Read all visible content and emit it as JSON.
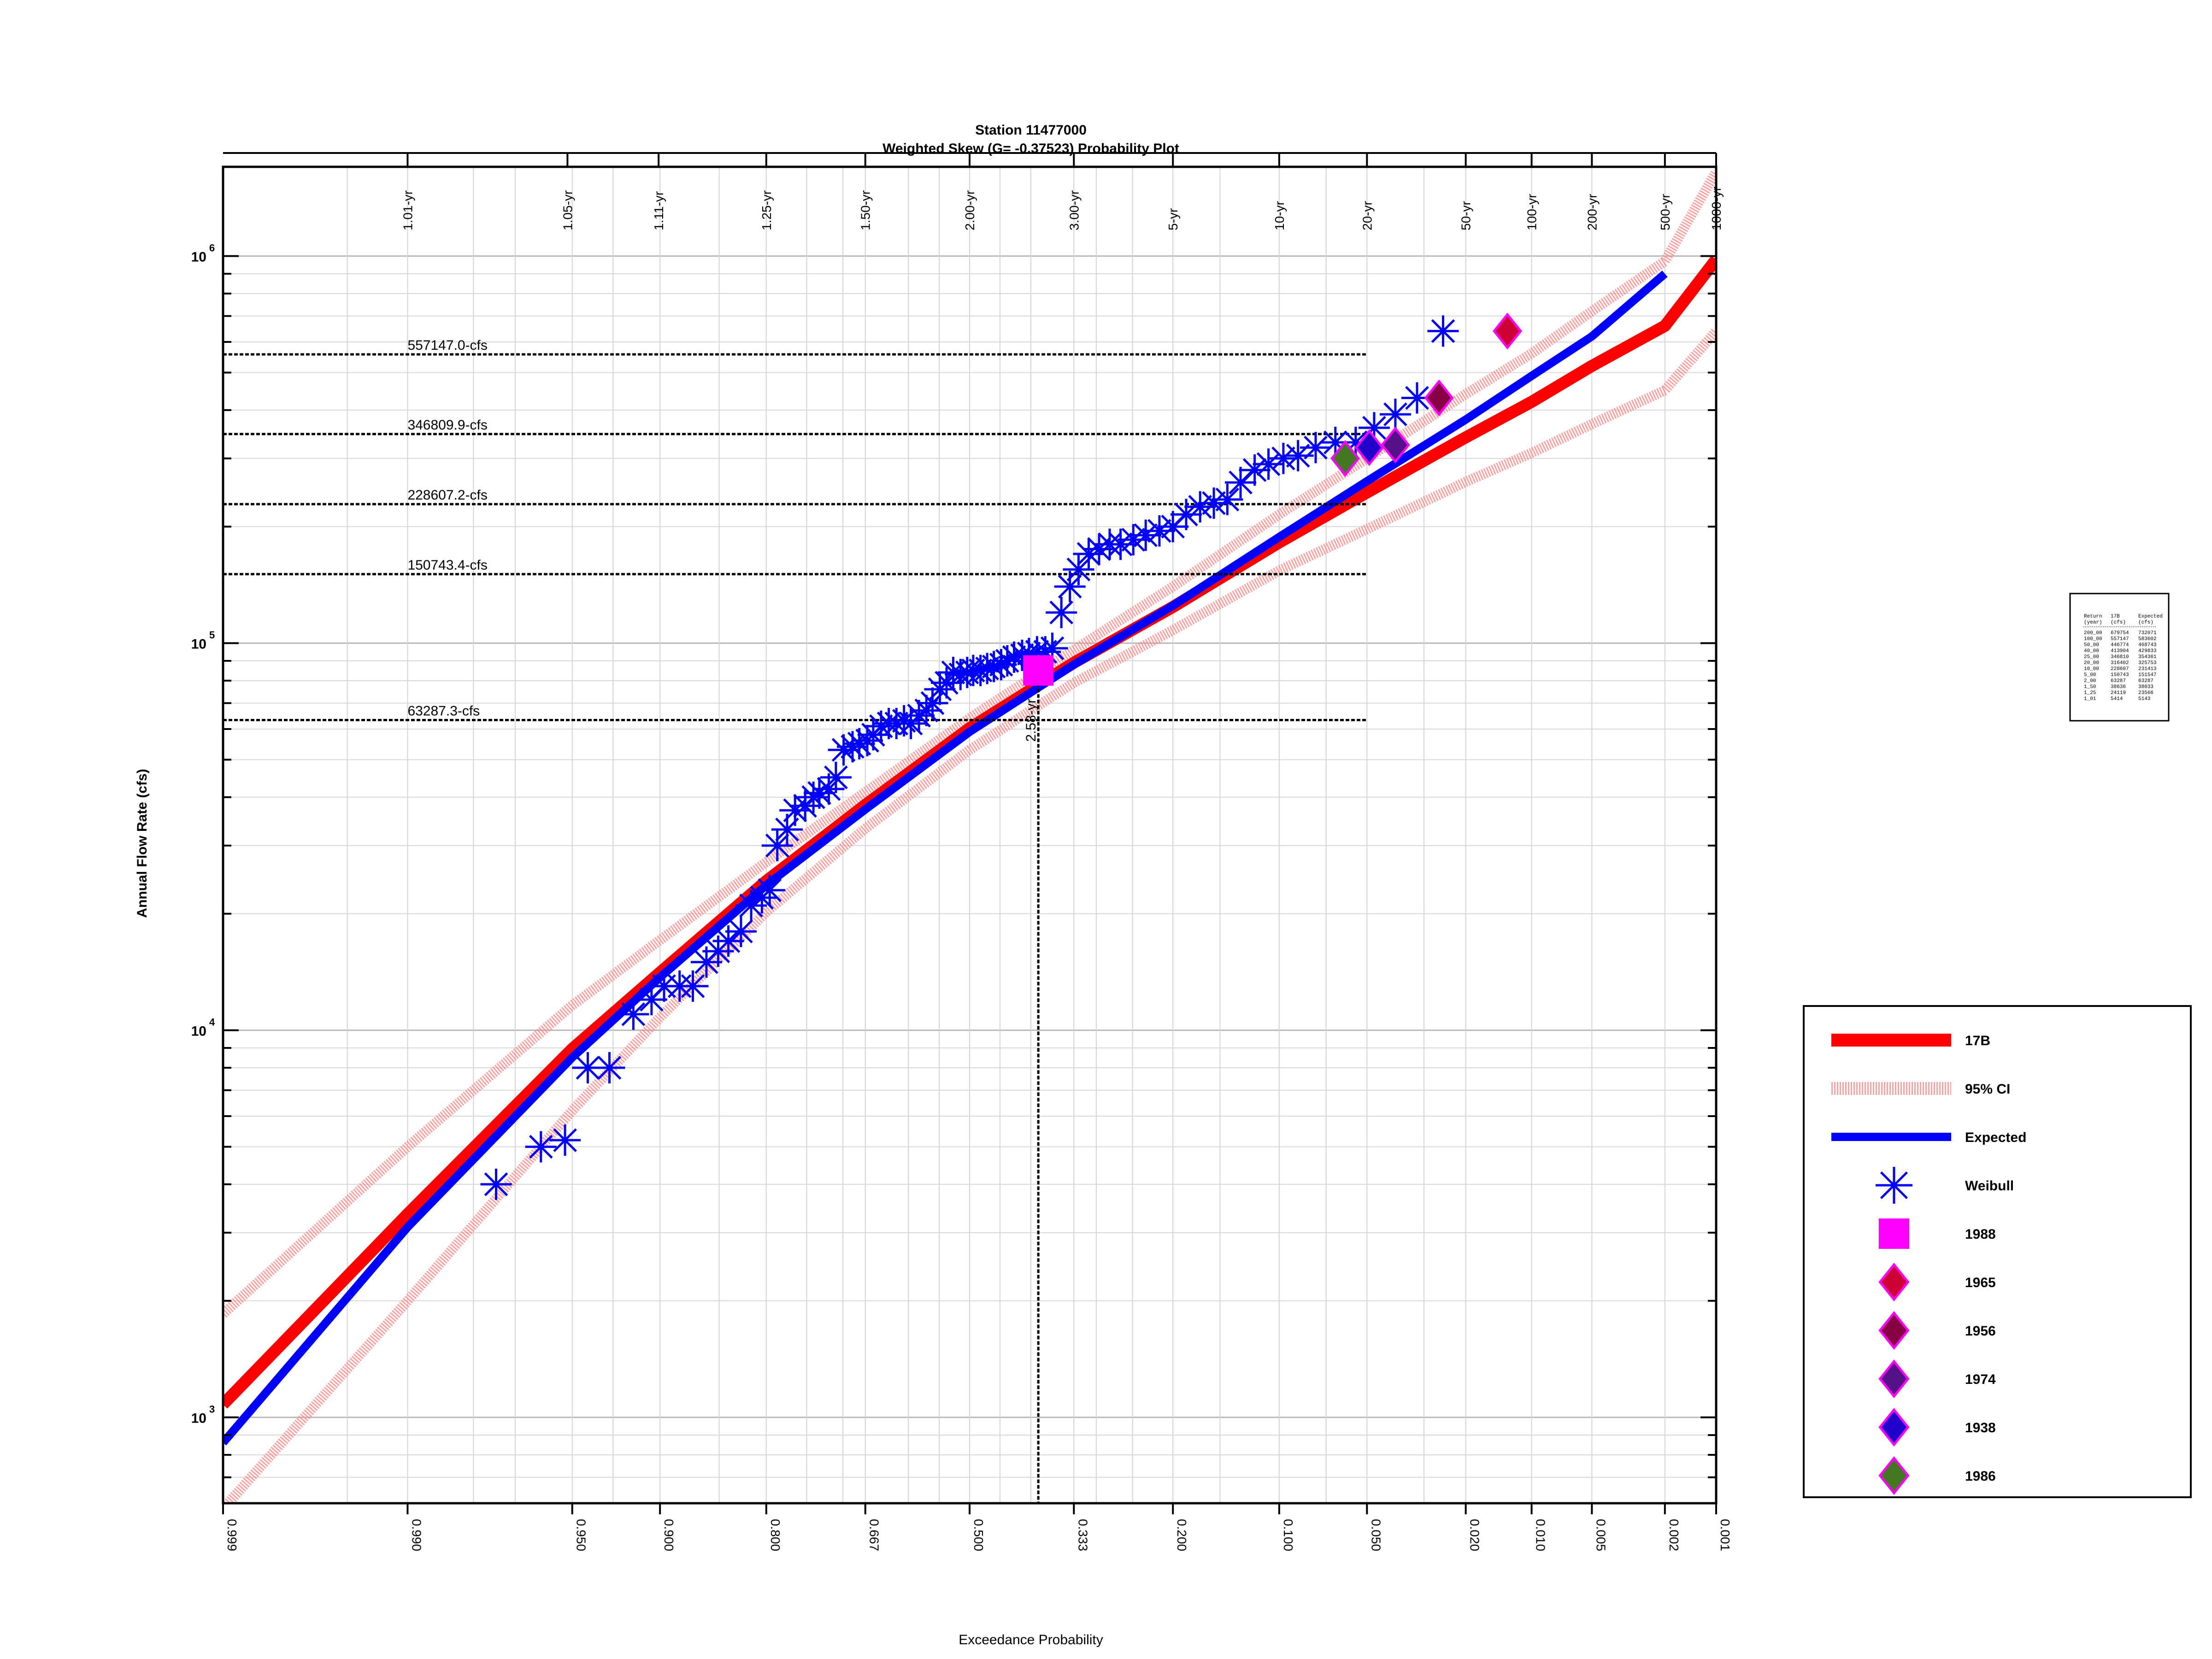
{
  "chart_data": {
    "type": "scatter",
    "title": "Station 11477000",
    "subtitle": "Weighted Skew (G= -0.37523) Probability Plot",
    "xlabel": "Exceedance Probability",
    "ylabel": "Annual Flow Rate (cfs)",
    "x_scale": "normal-probability",
    "y_scale": "log",
    "xlim": [
      0.999,
      0.001
    ],
    "ylim": [
      600,
      1700000
    ],
    "grid": true,
    "legend_position": "right",
    "x_ticks": [
      "0.999",
      "0.990",
      "0.950",
      "0.900",
      "0.800",
      "0.667",
      "0.500",
      "0.333",
      "0.200",
      "0.100",
      "0.050",
      "0.020",
      "0.010",
      "0.005",
      "0.002",
      "0.001"
    ],
    "x_tick_values": [
      0.999,
      0.99,
      0.95,
      0.9,
      0.8,
      0.667,
      0.5,
      0.333,
      0.2,
      0.1,
      0.05,
      0.02,
      0.01,
      0.005,
      0.002,
      0.001
    ],
    "top_ticks": [
      "1.01-yr",
      "1.05-yr",
      "1.11-yr",
      "1.25-yr",
      "1.50-yr",
      "2.00-yr",
      "3.00-yr",
      "5-yr",
      "10-yr",
      "20-yr",
      "50-yr",
      "100-yr",
      "200-yr",
      "500-yr",
      "1000-yr"
    ],
    "top_tick_values": [
      0.99,
      0.952,
      0.901,
      0.8,
      0.667,
      0.5,
      0.333,
      0.2,
      0.1,
      0.05,
      0.02,
      0.01,
      0.005,
      0.002,
      0.001
    ],
    "y_ticks": [
      {
        "value": 1000,
        "base": "10",
        "exp": "3"
      },
      {
        "value": 10000,
        "base": "10",
        "exp": "4"
      },
      {
        "value": 100000,
        "base": "10",
        "exp": "5"
      },
      {
        "value": 1000000,
        "base": "10",
        "exp": "6"
      }
    ],
    "reference_lines": [
      {
        "value": 557147.0,
        "label": "557147.0-cfs"
      },
      {
        "value": 346809.9,
        "label": "346809.9-cfs"
      },
      {
        "value": 228607.2,
        "label": "228607.2-cfs"
      },
      {
        "value": 150743.4,
        "label": "150743.4-cfs"
      },
      {
        "value": 63287.3,
        "label": "63287.3-cfs"
      }
    ],
    "vertical_reference": {
      "x": 0.388,
      "label": "2.58-yr",
      "y_top": 87000
    },
    "series": [
      {
        "name": "17B",
        "kind": "line",
        "color": "#ff0000",
        "x": [
          0.999,
          0.99,
          0.95,
          0.9,
          0.8,
          0.667,
          0.5,
          0.333,
          0.2,
          0.1,
          0.05,
          0.02,
          0.01,
          0.005,
          0.002,
          0.001
        ],
        "y": [
          1080,
          3350,
          8950,
          14100,
          24300,
          38200,
          60300,
          89000,
          124000,
          182000,
          245000,
          340000,
          420000,
          520000,
          660000,
          980000
        ]
      },
      {
        "name": "95% CI",
        "kind": "band",
        "color": "#ff8080",
        "upper": {
          "x": [
            0.999,
            0.99,
            0.95,
            0.9,
            0.8,
            0.667,
            0.5,
            0.333,
            0.2,
            0.1,
            0.05,
            0.02,
            0.01,
            0.005,
            0.002,
            0.001
          ],
          "y": [
            1850,
            5000,
            11600,
            17100,
            27200,
            41200,
            64000,
            96000,
            140000,
            215000,
            300000,
            440000,
            560000,
            720000,
            970000,
            1650000
          ]
        },
        "lower": {
          "x": [
            0.999,
            0.99,
            0.95,
            0.9,
            0.8,
            0.667,
            0.5,
            0.333,
            0.2,
            0.1,
            0.05,
            0.02,
            0.01,
            0.005,
            0.002,
            0.001
          ],
          "y": [
            580,
            2000,
            6200,
            10800,
            20200,
            33200,
            53000,
            79000,
            108000,
            154000,
            197000,
            261000,
            310000,
            368000,
            450000,
            640000
          ]
        }
      },
      {
        "name": "Expected",
        "kind": "line",
        "color": "#0000ff",
        "x": [
          0.999,
          0.99,
          0.95,
          0.9,
          0.8,
          0.667,
          0.5,
          0.333,
          0.2,
          0.1,
          0.05,
          0.02,
          0.01,
          0.005,
          0.002
        ],
        "y": [
          860,
          3100,
          8500,
          13700,
          23700,
          37200,
          59000,
          88000,
          125000,
          188000,
          262000,
          378000,
          490000,
          620000,
          900000
        ]
      },
      {
        "name": "Weibull",
        "kind": "points",
        "color": "#0000ff",
        "marker": "asterisk",
        "x": [
          0.975,
          0.962,
          0.953,
          0.943,
          0.932,
          0.918,
          0.906,
          0.897,
          0.885,
          0.874,
          0.862,
          0.851,
          0.841,
          0.828,
          0.817,
          0.805,
          0.796,
          0.787,
          0.775,
          0.765,
          0.752,
          0.741,
          0.733,
          0.72,
          0.71,
          0.699,
          0.686,
          0.676,
          0.664,
          0.655,
          0.643,
          0.631,
          0.619,
          0.607,
          0.596,
          0.583,
          0.571,
          0.561,
          0.549,
          0.538,
          0.527,
          0.515,
          0.504,
          0.494,
          0.482,
          0.471,
          0.46,
          0.448,
          0.438,
          0.427,
          0.414,
          0.403,
          0.39,
          0.377,
          0.366,
          0.352,
          0.339,
          0.326,
          0.311,
          0.296,
          0.281,
          0.266,
          0.249,
          0.233,
          0.216,
          0.2,
          0.185,
          0.17,
          0.156,
          0.143,
          0.131,
          0.119,
          0.108,
          0.097,
          0.087,
          0.076,
          0.065,
          0.055,
          0.047,
          0.039,
          0.032,
          0.025
        ],
        "y": [
          4000,
          5000,
          5200,
          8000,
          8000,
          11000,
          12000,
          13000,
          13000,
          13000,
          15000,
          16000,
          17000,
          18000,
          21000,
          22000,
          23000,
          30000,
          33000,
          37000,
          38000,
          40000,
          41000,
          42000,
          45000,
          53000,
          54000,
          55000,
          56000,
          58000,
          61000,
          62000,
          62000,
          63000,
          62000,
          65000,
          67000,
          70000,
          76000,
          79000,
          84000,
          83000,
          84000,
          85000,
          85000,
          86000,
          87000,
          88000,
          90000,
          92000,
          93000,
          94000,
          95000,
          95000,
          97000,
          120000,
          140000,
          155000,
          170000,
          175000,
          180000,
          180000,
          185000,
          190000,
          195000,
          200000,
          215000,
          225000,
          230000,
          235000,
          260000,
          280000,
          290000,
          300000,
          305000,
          320000,
          330000,
          330000,
          360000,
          390000,
          430000,
          640000
        ]
      },
      {
        "name": "1988",
        "kind": "highlight",
        "marker": "square",
        "color": "#ff00ff",
        "stroke": "#ff00ff",
        "x": [
          0.388
        ],
        "y": [
          85000
        ]
      },
      {
        "name": "1965",
        "kind": "highlight",
        "marker": "diamond",
        "color": "#cc0033",
        "stroke": "#ff00ff",
        "x": [
          0.013
        ],
        "y": [
          640000
        ]
      },
      {
        "name": "1956",
        "kind": "highlight",
        "marker": "diamond",
        "color": "#880044",
        "stroke": "#ff00ff",
        "x": [
          0.026
        ],
        "y": [
          430000
        ]
      },
      {
        "name": "1974",
        "kind": "highlight",
        "marker": "diamond",
        "color": "#551188",
        "stroke": "#ff00ff",
        "x": [
          0.039
        ],
        "y": [
          325000
        ]
      },
      {
        "name": "1938",
        "kind": "highlight",
        "marker": "diamond",
        "color": "#2200cc",
        "stroke": "#ff00ff",
        "x": [
          0.049
        ],
        "y": [
          320000
        ]
      },
      {
        "name": "1986",
        "kind": "highlight",
        "marker": "diamond",
        "color": "#447722",
        "stroke": "#ff00ff",
        "x": [
          0.06
        ],
        "y": [
          300000
        ]
      }
    ],
    "summary_table": {
      "header": [
        "Return",
        "17B",
        "Expected"
      ],
      "units": [
        "(year)",
        "(cfs)",
        "(cfs)"
      ],
      "rows": [
        [
          "200_00",
          "679754",
          "732071"
        ],
        [
          "100_00",
          "557147",
          "583602"
        ],
        [
          "50_00",
          "446774",
          "468743"
        ],
        [
          "40_00",
          "413904",
          "429833"
        ],
        [
          "25_00",
          "346810",
          "354361"
        ],
        [
          "20_00",
          "316402",
          "325753"
        ],
        [
          "10_00",
          "228607",
          "231413"
        ],
        [
          "5_00",
          "150743",
          "151547"
        ],
        [
          "2_00",
          "63287",
          "63287"
        ],
        [
          "1_50",
          "38636",
          "38033"
        ],
        [
          "1_25",
          "24119",
          "23566"
        ],
        [
          "1_01",
          "5414",
          "5143"
        ]
      ]
    }
  }
}
